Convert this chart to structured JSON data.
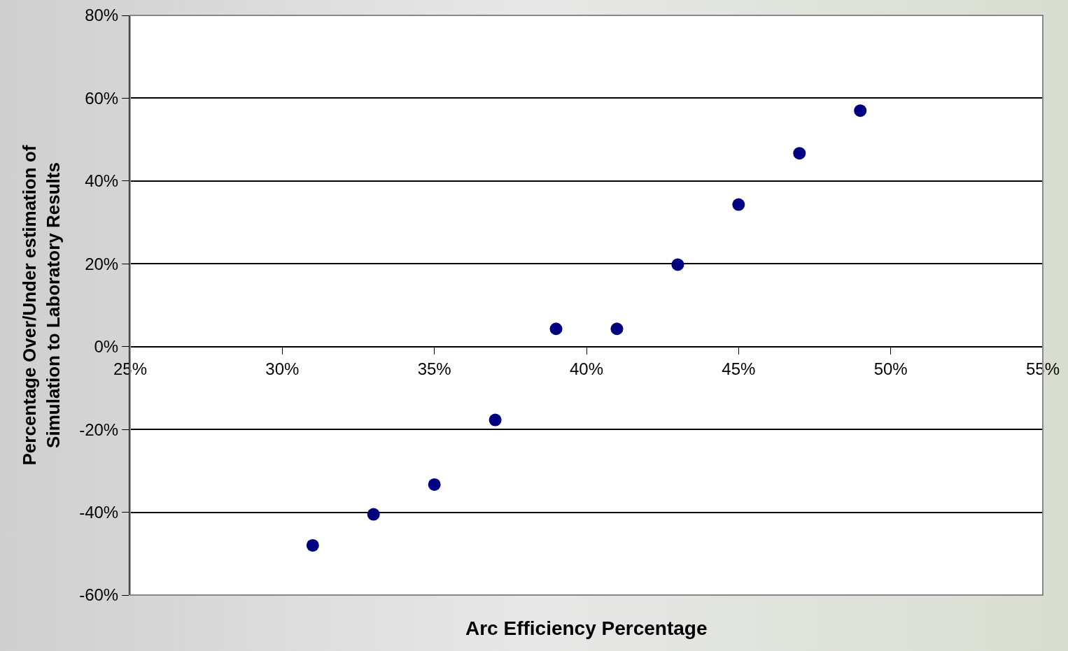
{
  "chart_data": {
    "type": "scatter",
    "xlabel": "Arc Efficiency Percentage",
    "ylabel": "Percentage Over/Under estimation of\nSimulation to Laboratory Results",
    "x": [
      31,
      33,
      35,
      37,
      39,
      41,
      43,
      45,
      47,
      49
    ],
    "values": [
      -48,
      -40.5,
      -33.3,
      -17.7,
      4.3,
      4.3,
      19.8,
      34.3,
      46.7,
      57
    ],
    "color": "#000080",
    "marker": "circle",
    "xlim": [
      25,
      55
    ],
    "xticks": [
      {
        "value": 25,
        "label": "25%"
      },
      {
        "value": 30,
        "label": "30%"
      },
      {
        "value": 35,
        "label": "35%"
      },
      {
        "value": 40,
        "label": "40%"
      },
      {
        "value": 45,
        "label": "45%"
      },
      {
        "value": 50,
        "label": "50%"
      },
      {
        "value": 55,
        "label": "55%"
      }
    ],
    "ylim": [
      -60,
      80
    ],
    "yticks": [
      {
        "value": -60,
        "label": "-60%"
      },
      {
        "value": -40,
        "label": "-40%"
      },
      {
        "value": -20,
        "label": "-20%"
      },
      {
        "value": 0,
        "label": "0%"
      },
      {
        "value": 20,
        "label": "20%"
      },
      {
        "value": 40,
        "label": "40%"
      },
      {
        "value": 60,
        "label": "60%"
      },
      {
        "value": 80,
        "label": "80%"
      }
    ],
    "grid": "y"
  }
}
